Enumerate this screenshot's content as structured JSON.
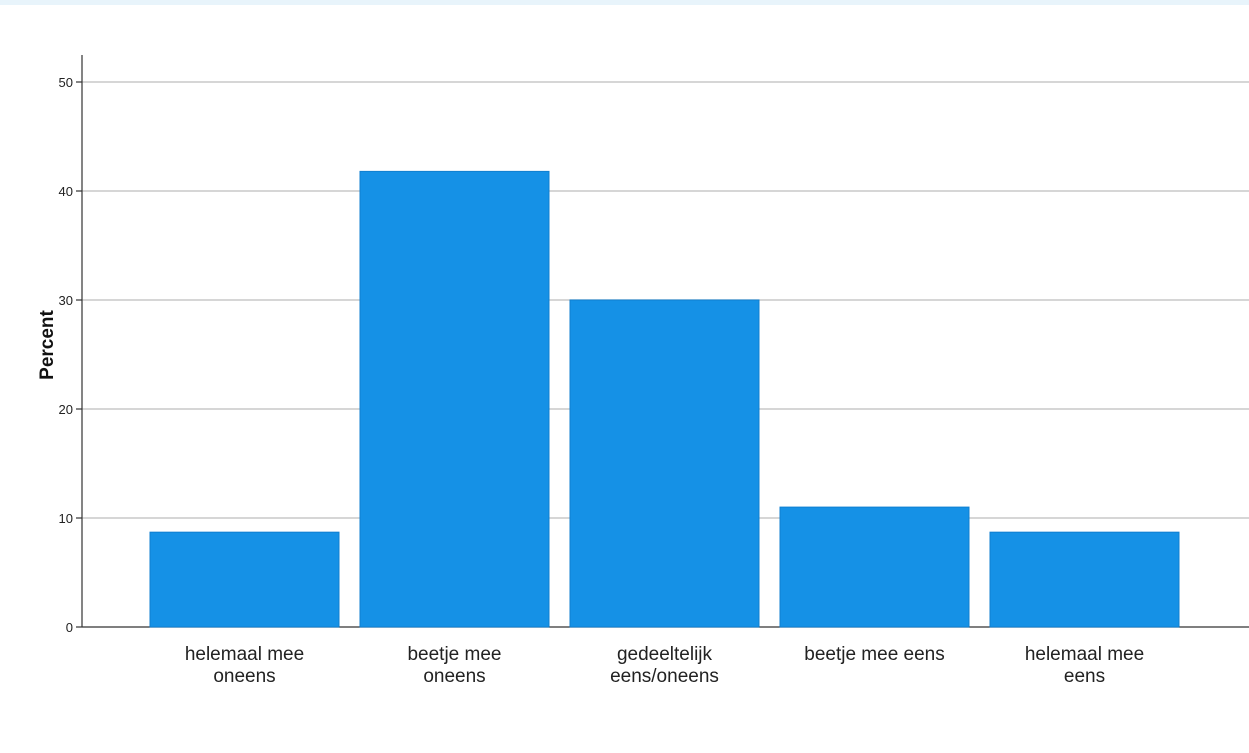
{
  "chart_data": {
    "type": "bar",
    "categories": [
      [
        "helemaal mee",
        "oneens"
      ],
      [
        "beetje mee",
        "oneens"
      ],
      [
        "gedeeltelijk",
        "eens/oneens"
      ],
      [
        "beetje mee eens"
      ],
      [
        "helemaal mee",
        "eens"
      ]
    ],
    "values": [
      8.7,
      41.8,
      30.0,
      11.0,
      8.7
    ],
    "ylabel": "Percent",
    "xlabel": "",
    "ylim": [
      0,
      52
    ],
    "yticks": [
      0,
      10,
      20,
      30,
      40,
      50
    ],
    "grid": true,
    "colors": {
      "bar": "#1591E6",
      "bar_edge": "#0F7FD0",
      "grid": "#c9c9c9",
      "axis": "#333333",
      "top_strip": "#e8f4fb"
    }
  }
}
